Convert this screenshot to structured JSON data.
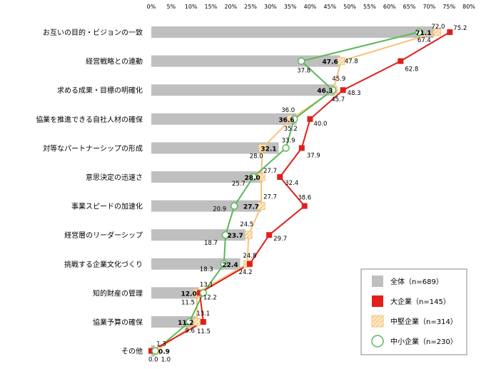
{
  "chart_data": {
    "type": "bar",
    "orientation": "horizontal",
    "categories": [
      "お互いの目的・ビジョンの一致",
      "経営戦略との連動",
      "求める成果・目標の明確化",
      "協業を推進できる自社人材の確保",
      "対等なパートナーシップの形成",
      "意思決定の迅速さ",
      "事業スピードの加速化",
      "経営層のリーダーシップ",
      "挑戦する企業文化づくり",
      "知的財産の管理",
      "協業予算の確保",
      "その他"
    ],
    "series": [
      {
        "name": "全体（n=689）",
        "kind": "bar",
        "color": "#bfbfbf",
        "values": [
          71.1,
          47.6,
          46.3,
          36.6,
          32.1,
          28.0,
          27.7,
          23.7,
          22.4,
          12.0,
          11.2,
          0.9
        ]
      },
      {
        "name": "大企業（n=145）",
        "kind": "line",
        "color": "#e0201b",
        "values": [
          75.2,
          62.8,
          48.3,
          40.0,
          37.9,
          32.4,
          38.6,
          29.7,
          24.8,
          12.2,
          13.1,
          0.0
        ]
      },
      {
        "name": "中堅企業（n=314）",
        "kind": "line",
        "color": "#f7c37a",
        "values": [
          72.0,
          47.8,
          45.9,
          35.2,
          28.0,
          27.7,
          27.7,
          24.5,
          24.2,
          11.5,
          11.5,
          1.3
        ]
      },
      {
        "name": "中小企業（n=230）",
        "kind": "line",
        "color": "#5cb85c",
        "values": [
          67.4,
          37.8,
          45.7,
          36.0,
          33.9,
          25.7,
          20.9,
          18.7,
          18.3,
          13.1,
          9.6,
          1.0
        ]
      }
    ],
    "x_ticks": [
      "0%",
      "5%",
      "10%",
      "15%",
      "20%",
      "25%",
      "30%",
      "35%",
      "40%",
      "45%",
      "50%",
      "55%",
      "60%",
      "65%",
      "70%",
      "75%",
      "80%"
    ],
    "xlim": [
      0,
      80
    ],
    "labels": {
      "large": [
        "75.2",
        "62.8",
        "48.3",
        "40.0",
        "37.9",
        "32.4",
        "38.6",
        "29.7",
        "24.8",
        "12.2",
        "13.1",
        "0.0"
      ],
      "medium": [
        "72.0",
        "47.8",
        "45.9",
        "35.2",
        "28.0",
        "27.7",
        "27.7",
        "24.5",
        "24.2",
        "11.5",
        "11.5",
        "1.3"
      ],
      "small": [
        "67.4",
        "37.8",
        "45.7",
        "36.0",
        "33.9",
        "25.7",
        "20.9",
        "18.7",
        "18.3",
        "13.1",
        "9.6",
        "1.0"
      ],
      "total": [
        "71.1",
        "47.6",
        "46.3",
        "36.6",
        "32.1",
        "28.0",
        "27.7",
        "23.7",
        "22.4",
        "12.0",
        "11.2",
        "0.9"
      ]
    },
    "legend": {
      "placement": "bottom-right",
      "entries": [
        "全体（n=689）",
        "大企業（n=145）",
        "中堅企業（n=314）",
        "中小企業（n=230）"
      ]
    },
    "grid": false
  }
}
